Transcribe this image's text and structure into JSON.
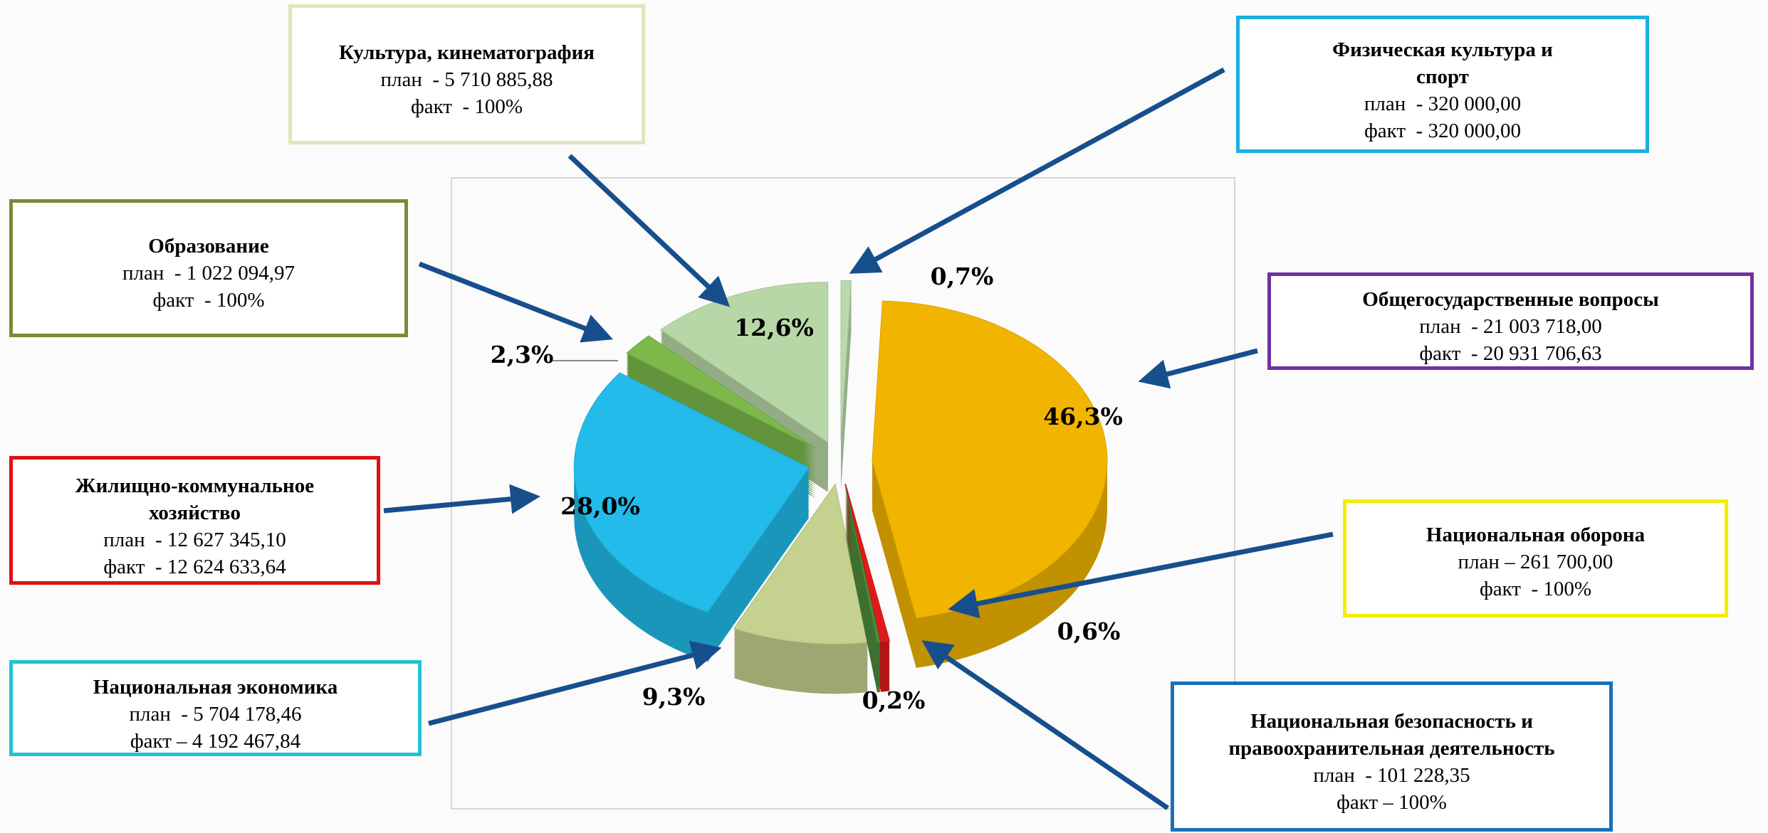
{
  "chart_data": {
    "type": "pie",
    "categories": [
      "Физическая культура и спорт",
      "Общегосударственные вопросы",
      "Национальная оборона",
      "Национальная безопасность и правоохранительная деятельность",
      "Национальная экономика",
      "Жилищно-коммунальное хозяйство",
      "Образование",
      "Культура, кинематография"
    ],
    "values": [
      0.7,
      46.3,
      0.6,
      0.2,
      9.3,
      28.0,
      2.3,
      12.6
    ],
    "value_labels": [
      "0,7%",
      "46,3%",
      "0,6%",
      "0,2%",
      "9,3%",
      "28,0%",
      "2,3%",
      "12,6%"
    ],
    "colors": [
      "#b9d9ad",
      "#f1b500",
      "#e01a1a",
      "#4f8c3c",
      "#c4d18f",
      "#22bbea",
      "#7cb84a",
      "#b8d7a6"
    ]
  },
  "callouts": [
    {
      "plan": "план  - 320 000,00",
      "fact": "факт  - 320 000,00"
    },
    {
      "plan": "план  - 21 003 718,00",
      "fact": "факт  - 20 931 706,63"
    },
    {
      "plan": "план – 261 700,00",
      "fact": "факт  - 100%"
    },
    {
      "plan": "план  - 101 228,35",
      "fact": "факт – 100%"
    },
    {
      "plan": "план  - 5 704 178,46",
      "fact": "факт – 4 192 467,84"
    },
    {
      "plan": "план  - 12 627 345,10",
      "fact": "факт  - 12 624 633,64"
    },
    {
      "plan": "план  - 1 022 094,97",
      "fact": "факт  - 100%"
    },
    {
      "plan": "план  - 5 710 885,88",
      "fact": "факт  - 100%"
    }
  ]
}
